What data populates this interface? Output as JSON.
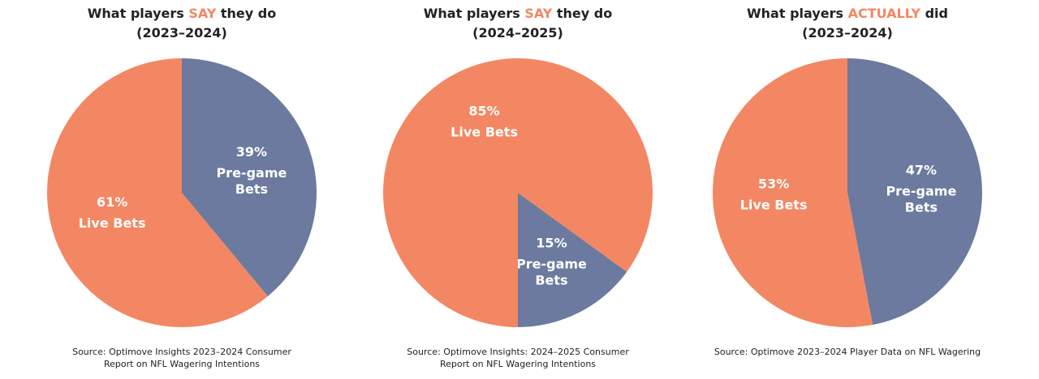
{
  "chart_data": [
    {
      "type": "pie",
      "title": {
        "before": "What players",
        "highlight": "SAY",
        "after": "they do"
      },
      "subtitle": "(2023–2024)",
      "categories": [
        "Pre-game Bets",
        "Live Bets"
      ],
      "values": [
        39,
        61
      ],
      "value_labels": [
        "39%",
        "61%"
      ],
      "colors": [
        "#6b7a9e",
        "#f38763"
      ],
      "source": [
        "Source: Optimove Insights 2023–2024 Consumer",
        "Report on NFL Wagering Intentions"
      ]
    },
    {
      "type": "pie",
      "title": {
        "before": "What players",
        "highlight": "SAY",
        "after": "they do"
      },
      "subtitle": "(2024–2025)",
      "categories": [
        "Pre-game Bets",
        "Live Bets"
      ],
      "values": [
        15,
        85
      ],
      "value_labels": [
        "15%",
        "85%"
      ],
      "colors": [
        "#6b7a9e",
        "#f38763"
      ],
      "source": [
        "Source: Optimove Insights: 2024–2025 Consumer",
        "Report on NFL Wagering Intentions"
      ]
    },
    {
      "type": "pie",
      "title": {
        "before": "What players",
        "highlight": "ACTUALLY",
        "after": "did"
      },
      "subtitle": "(2023–2024)",
      "categories": [
        "Pre-game Bets",
        "Live Bets"
      ],
      "values": [
        47,
        53
      ],
      "value_labels": [
        "47%",
        "53%"
      ],
      "colors": [
        "#6b7a9e",
        "#f38763"
      ],
      "source": [
        "Source: Optimove 2023–2024 Player Data on NFL Wagering"
      ]
    }
  ]
}
